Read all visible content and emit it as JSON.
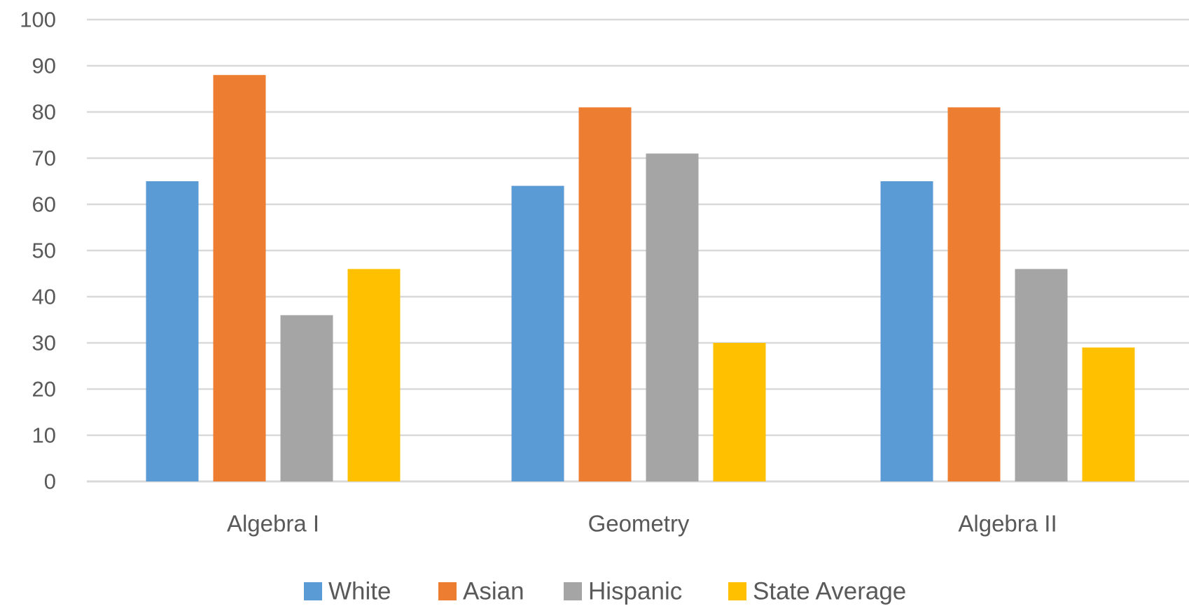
{
  "chart_data": {
    "type": "bar",
    "title": "",
    "xlabel": "",
    "ylabel": "",
    "categories": [
      "Algebra I",
      "Geometry",
      "Algebra II"
    ],
    "series": [
      {
        "name": "White",
        "color": "#5B9BD5",
        "values": [
          65,
          64,
          65
        ]
      },
      {
        "name": "Asian",
        "color": "#ED7D31",
        "values": [
          88,
          81,
          81
        ]
      },
      {
        "name": "Hispanic",
        "color": "#A5A5A5",
        "values": [
          36,
          71,
          46
        ]
      },
      {
        "name": "State Average",
        "color": "#FFC000",
        "values": [
          46,
          30,
          29
        ]
      }
    ],
    "ylim": [
      0,
      100
    ],
    "yticks": [
      0,
      10,
      20,
      30,
      40,
      50,
      60,
      70,
      80,
      90,
      100
    ],
    "ytick_labels": [
      "0",
      "10",
      "20",
      "30",
      "40",
      "50",
      "60",
      "70",
      "80",
      "90",
      "100"
    ],
    "grid": true,
    "legend_position": "bottom-center"
  }
}
